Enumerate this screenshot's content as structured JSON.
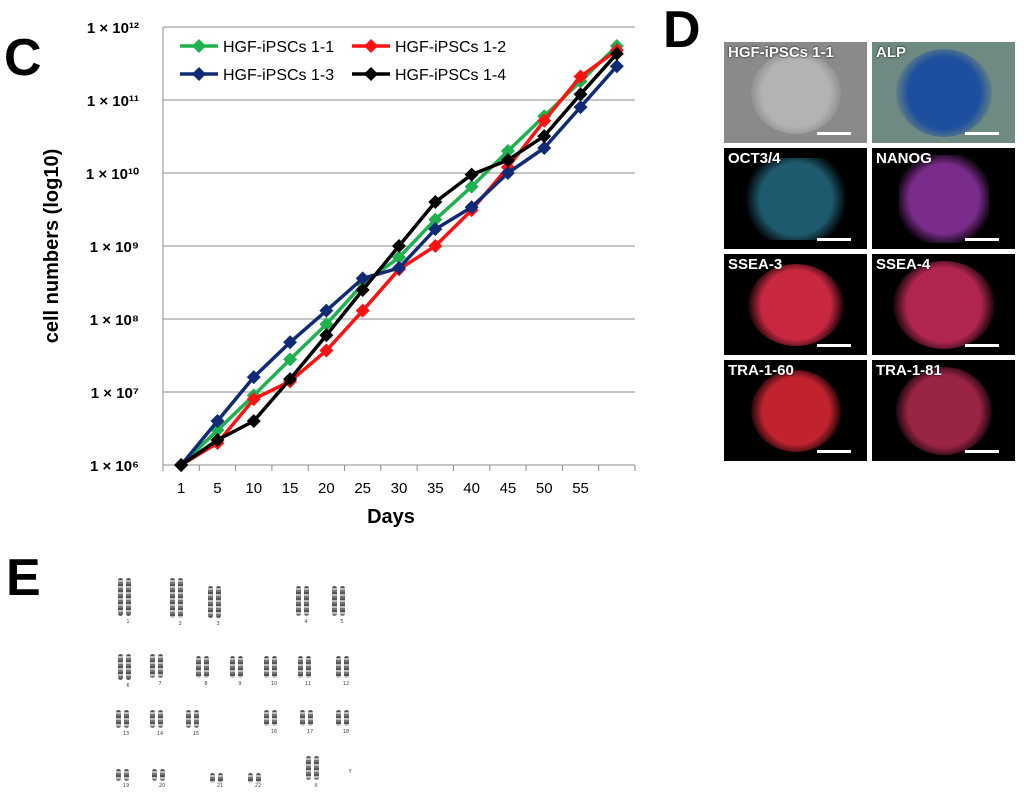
{
  "panel_letters": {
    "c": "C",
    "d": "D",
    "e": "E"
  },
  "chart_data": {
    "type": "line",
    "xlabel": "Days",
    "ylabel": "cell numbers (log10)",
    "yscale": "log",
    "ylim": [
      1000000,
      1000000000000
    ],
    "y_tick_labels": [
      "1 × 10⁶",
      "1 × 10⁷",
      "1 × 10⁸",
      "1 × 10⁹",
      "1 × 10¹⁰",
      "1 × 10¹¹",
      "1 × 10¹²"
    ],
    "y_tick_values": [
      1000000,
      10000000,
      100000000,
      1000000000,
      10000000000,
      100000000000,
      1000000000000
    ],
    "categories": [
      "1",
      "5",
      "10",
      "15",
      "20",
      "25",
      "30",
      "35",
      "40",
      "45",
      "50",
      "55",
      ""
    ],
    "grid": "horizontal",
    "legend_position": "top-left",
    "series": [
      {
        "name": "HGF-iPSCs 1-1",
        "color": "#1fb14f",
        "values": [
          1000000,
          3000000,
          9000000,
          28000000,
          85000000,
          300000000,
          700000000,
          2300000000,
          6500000000,
          20000000000,
          60000000000,
          180000000000,
          550000000000
        ]
      },
      {
        "name": "HGF-iPSCs 1-2",
        "color": "#ff1111",
        "values": [
          1000000,
          2000000,
          8000000,
          14000000,
          37000000,
          130000000,
          480000000,
          1000000000,
          3100000000,
          12000000000,
          52000000000,
          210000000000,
          480000000000
        ]
      },
      {
        "name": "HGF-iPSCs 1-3",
        "color": "#102a73",
        "values": [
          1000000,
          4000000,
          16000000,
          48000000,
          130000000,
          360000000,
          500000000,
          1700000000,
          3400000000,
          10000000000,
          22000000000,
          80000000000,
          290000000000
        ]
      },
      {
        "name": "HGF-iPSCs 1-4",
        "color": "#000000",
        "values": [
          1000000,
          2200000,
          4000000,
          15000000,
          60000000,
          250000000,
          1000000000,
          4000000000,
          9500000000,
          15000000000,
          32000000000,
          120000000000,
          430000000000
        ]
      }
    ]
  },
  "staining_panels": [
    {
      "label": "HGF-iPSCs 1-1",
      "bg": "#8a8a8a",
      "colony": "#b3b3b3"
    },
    {
      "label": "ALP",
      "bg": "#6f8a82",
      "colony": "#1d4f9e"
    },
    {
      "label": "OCT3/4",
      "bg": "#000000",
      "colony": "#1e5a6e"
    },
    {
      "label": "NANOG",
      "bg": "#000000",
      "colony": "#7a2c8a"
    },
    {
      "label": "SSEA-3",
      "bg": "#000000",
      "colony": "#c8283f"
    },
    {
      "label": "SSEA-4",
      "bg": "#000000",
      "colony": "#b02650"
    },
    {
      "label": "TRA-1-60",
      "bg": "#000000",
      "colony": "#c0232e"
    },
    {
      "label": "TRA-1-81",
      "bg": "#000000",
      "colony": "#9a2444"
    }
  ],
  "karyotype_labels": [
    "1",
    "2",
    "3",
    "4",
    "5",
    "6",
    "7",
    "8",
    "9",
    "10",
    "11",
    "12",
    "13",
    "14",
    "15",
    "16",
    "17",
    "18",
    "19",
    "20",
    "21",
    "22",
    "X",
    "Y"
  ]
}
